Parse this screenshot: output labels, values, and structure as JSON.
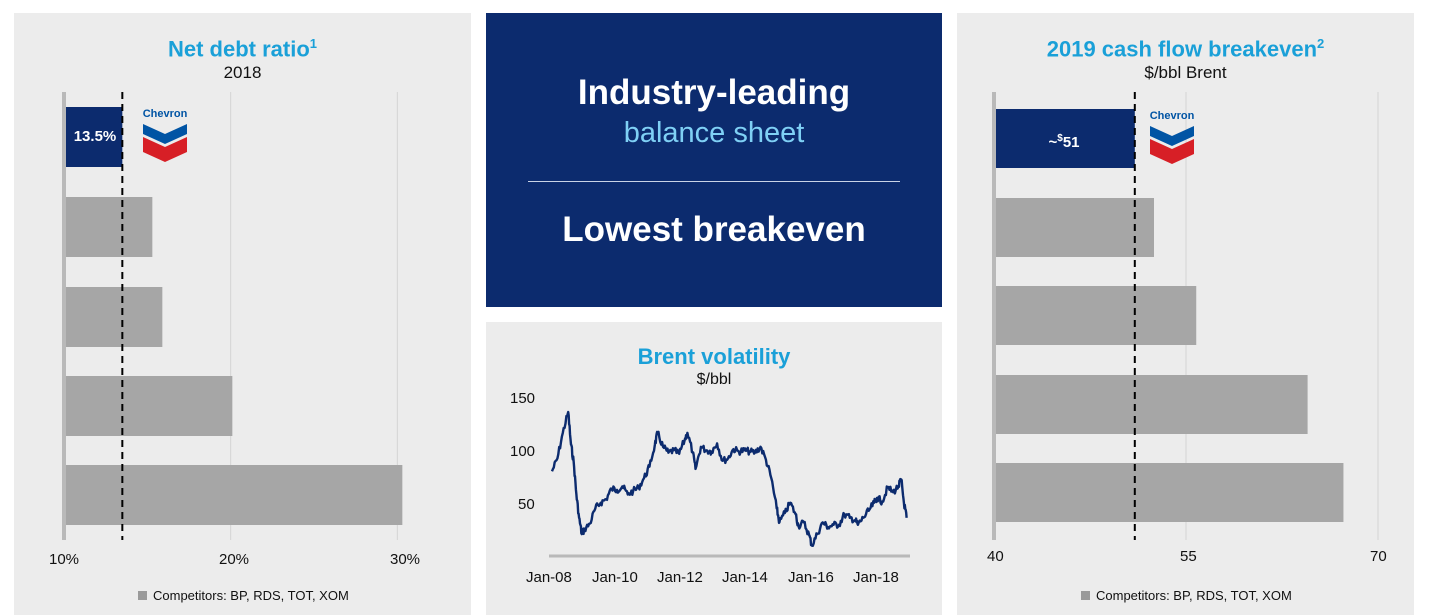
{
  "left_panel": {
    "title": "Net debt ratio",
    "title_sup": "1",
    "subtitle": "2018",
    "callout_label": "13.5%",
    "logo_text": "Chevron",
    "legend": "Competitors: BP, RDS, TOT, XOM"
  },
  "center_box": {
    "line1": "Industry-leading",
    "line2": "balance sheet",
    "line3": "Lowest breakeven"
  },
  "center_chart": {
    "title": "Brent volatility",
    "subtitle": "$/bbl"
  },
  "right_panel": {
    "title": "2019 cash flow breakeven",
    "title_sup": "2",
    "subtitle": "$/bbl Brent",
    "callout_prefix": "~",
    "callout_sup": "$",
    "callout_value": "51",
    "logo_text": "Chevron",
    "legend": "Competitors: BP, RDS, TOT, XOM"
  },
  "colors": {
    "chevron_bar": "#0c2b6e",
    "competitor_bar": "#a6a6a6",
    "title_blue": "#1aa0d8",
    "line": "#0c2b6e",
    "logo_red": "#d71f26",
    "logo_blue": "#0054a4"
  },
  "chart_data": [
    {
      "type": "bar",
      "orientation": "horizontal",
      "title": "Net debt ratio",
      "subtitle": "2018",
      "categories": [
        "Chevron",
        "",
        "",
        "",
        ""
      ],
      "values": [
        13.5,
        15.3,
        15.9,
        20.1,
        30.3
      ],
      "xlim": [
        10,
        31
      ],
      "ticks": [
        "10%",
        "20%",
        "30%"
      ],
      "tick_values": [
        10,
        20,
        30
      ],
      "reference_line": 13.5,
      "legend": [
        "Competitors: BP, RDS, TOT, XOM"
      ]
    },
    {
      "type": "line",
      "title": "Brent volatility",
      "ylabel": "$/bbl",
      "x": [
        "Jan-08",
        "Jan-10",
        "Jan-12",
        "Jan-14",
        "Jan-16",
        "Jan-18"
      ],
      "y_ticks": [
        50,
        100,
        150
      ],
      "ylim": [
        20,
        155
      ],
      "series": [
        {
          "points": [
            [
              "2008-01",
              92
            ],
            [
              "2008-03",
              103
            ],
            [
              "2008-05",
              125
            ],
            [
              "2008-07",
              143
            ],
            [
              "2008-08",
              115
            ],
            [
              "2008-09",
              100
            ],
            [
              "2008-10",
              72
            ],
            [
              "2008-11",
              52
            ],
            [
              "2008-12",
              38
            ],
            [
              "2009-01",
              42
            ],
            [
              "2009-03",
              47
            ],
            [
              "2009-05",
              60
            ],
            [
              "2009-07",
              65
            ],
            [
              "2009-09",
              68
            ],
            [
              "2009-11",
              77
            ],
            [
              "2010-01",
              76
            ],
            [
              "2010-03",
              79
            ],
            [
              "2010-05",
              72
            ],
            [
              "2010-07",
              75
            ],
            [
              "2010-09",
              78
            ],
            [
              "2010-11",
              86
            ],
            [
              "2011-01",
              96
            ],
            [
              "2011-03",
              115
            ],
            [
              "2011-04",
              125
            ],
            [
              "2011-06",
              113
            ],
            [
              "2011-08",
              108
            ],
            [
              "2011-10",
              110
            ],
            [
              "2011-12",
              107
            ],
            [
              "2012-02",
              119
            ],
            [
              "2012-03",
              125
            ],
            [
              "2012-05",
              108
            ],
            [
              "2012-06",
              94
            ],
            [
              "2012-08",
              113
            ],
            [
              "2012-10",
              110
            ],
            [
              "2012-12",
              109
            ],
            [
              "2013-02",
              116
            ],
            [
              "2013-04",
              101
            ],
            [
              "2013-06",
              103
            ],
            [
              "2013-08",
              111
            ],
            [
              "2013-10",
              109
            ],
            [
              "2013-12",
              110
            ],
            [
              "2014-02",
              109
            ],
            [
              "2014-04",
              108
            ],
            [
              "2014-06",
              113
            ],
            [
              "2014-08",
              102
            ],
            [
              "2014-10",
              86
            ],
            [
              "2014-12",
              60
            ],
            [
              "2015-01",
              48
            ],
            [
              "2015-03",
              56
            ],
            [
              "2015-05",
              65
            ],
            [
              "2015-07",
              55
            ],
            [
              "2015-08",
              45
            ],
            [
              "2015-10",
              48
            ],
            [
              "2015-12",
              37
            ],
            [
              "2016-01",
              28
            ],
            [
              "2016-03",
              38
            ],
            [
              "2016-05",
              48
            ],
            [
              "2016-07",
              44
            ],
            [
              "2016-09",
              46
            ],
            [
              "2016-11",
              46
            ],
            [
              "2017-01",
              55
            ],
            [
              "2017-03",
              52
            ],
            [
              "2017-05",
              50
            ],
            [
              "2017-06",
              46
            ],
            [
              "2017-08",
              52
            ],
            [
              "2017-10",
              58
            ],
            [
              "2017-12",
              65
            ],
            [
              "2018-01",
              69
            ],
            [
              "2018-03",
              66
            ],
            [
              "2018-05",
              78
            ],
            [
              "2018-07",
              74
            ],
            [
              "2018-09",
              79
            ],
            [
              "2018-10",
              85
            ],
            [
              "2018-11",
              65
            ],
            [
              "2018-12",
              52
            ]
          ]
        }
      ]
    },
    {
      "type": "bar",
      "orientation": "horizontal",
      "title": "2019 cash flow breakeven",
      "subtitle": "$/bbl Brent",
      "categories": [
        "Chevron",
        "",
        "",
        "",
        ""
      ],
      "values": [
        51,
        52.5,
        55.8,
        64.5,
        67.3
      ],
      "xlim": [
        40,
        70
      ],
      "ticks": [
        "40",
        "55",
        "70"
      ],
      "tick_values": [
        40,
        55,
        70
      ],
      "reference_line": 51,
      "legend": [
        "Competitors: BP, RDS, TOT, XOM"
      ]
    }
  ]
}
